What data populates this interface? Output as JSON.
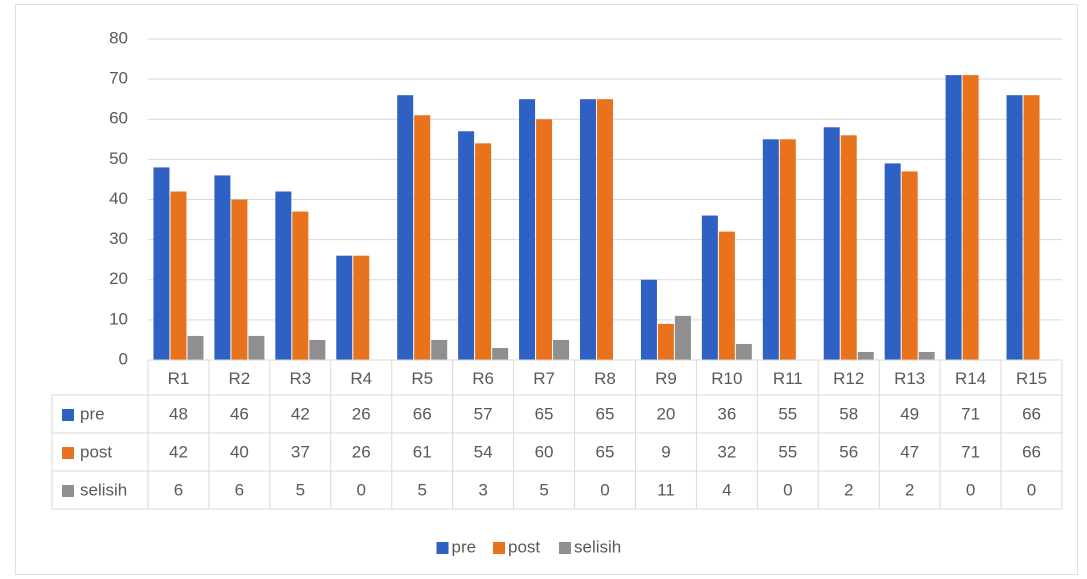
{
  "chart_data": {
    "type": "bar",
    "categories": [
      "R1",
      "R2",
      "R3",
      "R4",
      "R5",
      "R6",
      "R7",
      "R8",
      "R9",
      "R10",
      "R11",
      "R12",
      "R13",
      "R14",
      "R15"
    ],
    "series": [
      {
        "name": "pre",
        "color": "#2f60c4",
        "values": [
          48,
          46,
          42,
          26,
          66,
          57,
          65,
          65,
          20,
          36,
          55,
          58,
          49,
          71,
          66
        ]
      },
      {
        "name": "post",
        "color": "#e8731c",
        "values": [
          42,
          40,
          37,
          26,
          61,
          54,
          60,
          65,
          9,
          32,
          55,
          56,
          47,
          71,
          66
        ]
      },
      {
        "name": "selisih",
        "color": "#8f8f8f",
        "values": [
          6,
          6,
          5,
          0,
          5,
          3,
          5,
          0,
          11,
          4,
          0,
          2,
          2,
          0,
          0
        ]
      }
    ],
    "ylim": [
      0,
      80
    ],
    "yticks": [
      0,
      10,
      20,
      30,
      40,
      50,
      60,
      70,
      80
    ],
    "grid": true,
    "data_table": true,
    "legend": "bottom"
  }
}
